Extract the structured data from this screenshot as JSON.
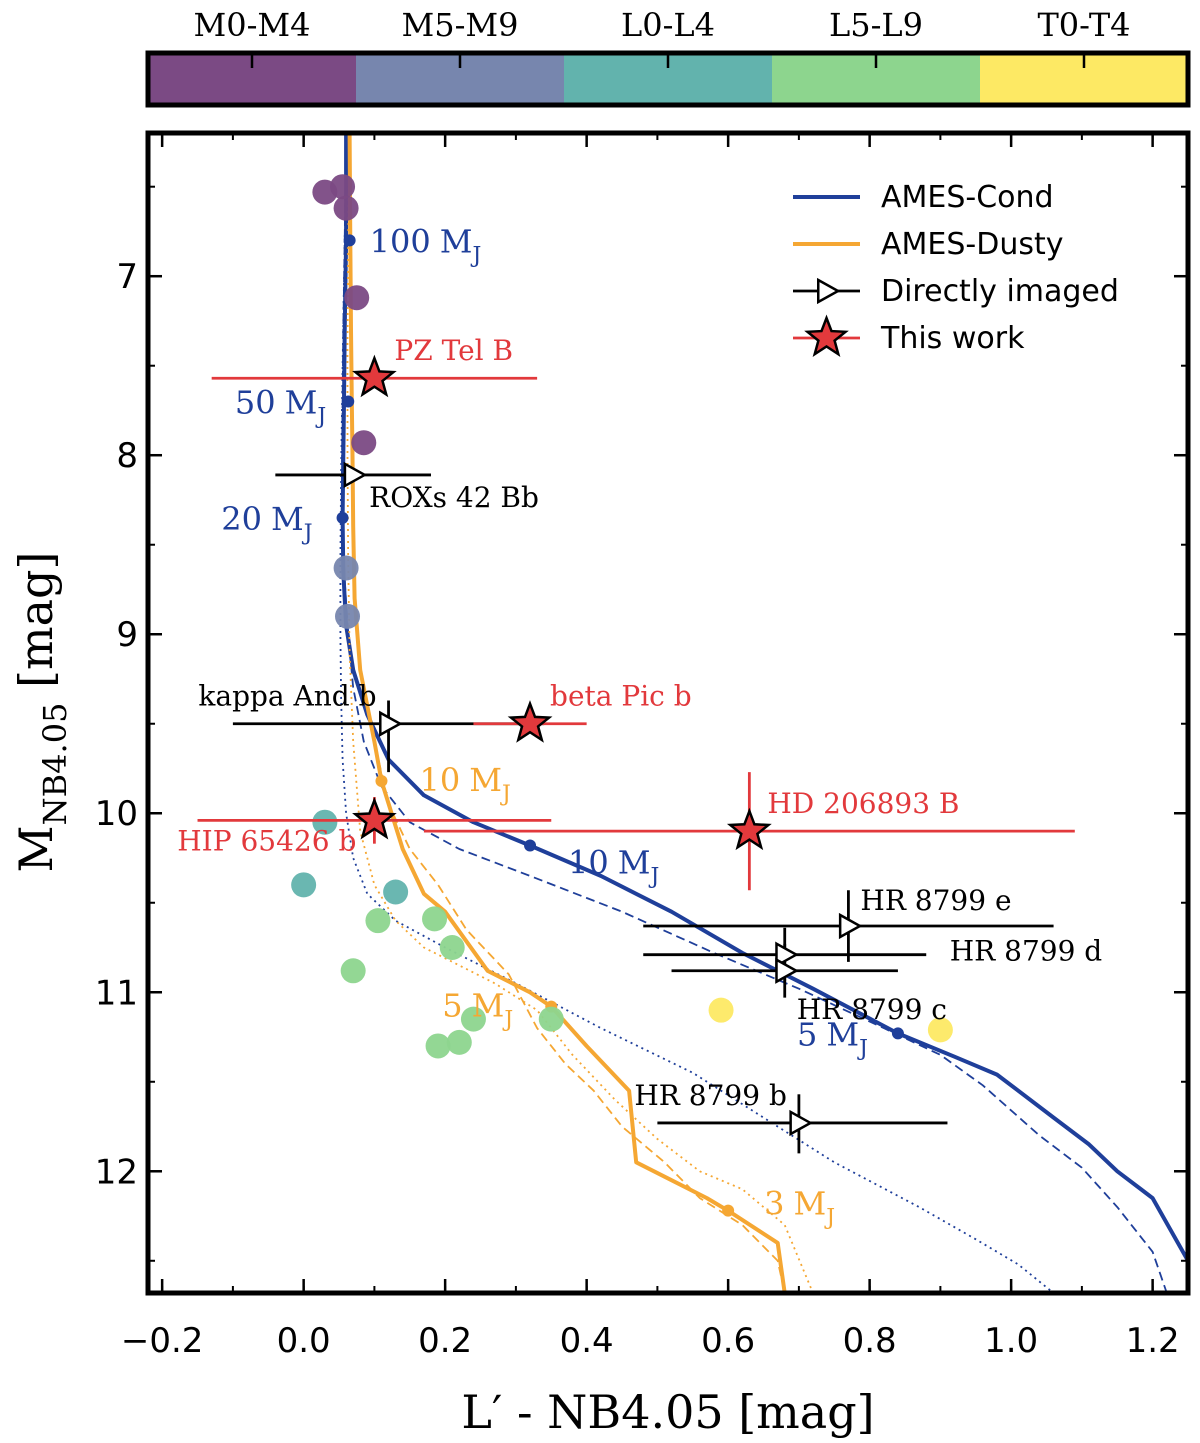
{
  "chart_data": {
    "type": "scatter",
    "xlabel": "L′ - NB4.05 [mag]",
    "ylabel_main": "M",
    "ylabel_sub": "NB4.05",
    "ylabel_unit": "[mag]",
    "xlim": [
      -0.22,
      1.25
    ],
    "ylim": [
      12.68,
      6.2
    ],
    "xticks": [
      -0.2,
      0.0,
      0.2,
      0.4,
      0.6,
      0.8,
      1.0,
      1.2
    ],
    "xtick_labels": [
      "−0.2",
      "0.0",
      "0.2",
      "0.4",
      "0.6",
      "0.8",
      "1.0",
      "1.2"
    ],
    "yticks": [
      7,
      8,
      9,
      10,
      11,
      12
    ],
    "ytick_labels": [
      "7",
      "8",
      "9",
      "10",
      "11",
      "12"
    ],
    "colorbar": {
      "categories": [
        "M0-M4",
        "M5-M9",
        "L0-L4",
        "L5-L9",
        "T0-T4"
      ],
      "colors": [
        "#7b4a84",
        "#7786ae",
        "#62b3ad",
        "#8dd58e",
        "#fde964"
      ]
    },
    "legend": {
      "position": "top-right",
      "entries": [
        {
          "label": "AMES-Cond",
          "kind": "line",
          "color": "#1f3f9a"
        },
        {
          "label": "AMES-Dusty",
          "kind": "line",
          "color": "#f5a733"
        },
        {
          "label": "Directly imaged",
          "kind": "triangle",
          "color": "#000000"
        },
        {
          "label": "This work",
          "kind": "star",
          "color": "#e2393c"
        }
      ]
    },
    "field_objects": [
      {
        "x": 0.03,
        "y": 6.53,
        "class": 0
      },
      {
        "x": 0.055,
        "y": 6.5,
        "class": 0
      },
      {
        "x": 0.06,
        "y": 6.62,
        "class": 0
      },
      {
        "x": 0.075,
        "y": 7.12,
        "class": 0
      },
      {
        "x": 0.085,
        "y": 7.93,
        "class": 0
      },
      {
        "x": 0.06,
        "y": 8.63,
        "class": 1
      },
      {
        "x": 0.062,
        "y": 8.9,
        "class": 1
      },
      {
        "x": 0.03,
        "y": 10.05,
        "class": 2
      },
      {
        "x": 0.0,
        "y": 10.4,
        "class": 2
      },
      {
        "x": 0.13,
        "y": 10.44,
        "class": 2
      },
      {
        "x": 0.105,
        "y": 10.6,
        "class": 3
      },
      {
        "x": 0.185,
        "y": 10.59,
        "class": 3
      },
      {
        "x": 0.21,
        "y": 10.75,
        "class": 3
      },
      {
        "x": 0.07,
        "y": 10.88,
        "class": 3
      },
      {
        "x": 0.24,
        "y": 11.15,
        "class": 3
      },
      {
        "x": 0.35,
        "y": 11.15,
        "class": 3
      },
      {
        "x": 0.19,
        "y": 11.3,
        "class": 3
      },
      {
        "x": 0.22,
        "y": 11.28,
        "class": 3
      },
      {
        "x": 0.59,
        "y": 11.1,
        "class": 4
      },
      {
        "x": 0.9,
        "y": 11.21,
        "class": 4
      }
    ],
    "this_work": [
      {
        "name": "PZ Tel B",
        "x": 0.1,
        "y": 7.57,
        "xerr": [
          0.23,
          0.23
        ],
        "yerr": [
          0,
          0
        ]
      },
      {
        "name": "beta Pic b",
        "x": 0.32,
        "y": 9.5,
        "xerr": [
          0.08,
          0.08
        ],
        "yerr": [
          0,
          0
        ]
      },
      {
        "name": "HIP 65426 b",
        "x": 0.1,
        "y": 10.04,
        "xerr": [
          0.25,
          0.25
        ],
        "yerr": [
          0.13,
          0.13
        ]
      },
      {
        "name": "HD 206893 B",
        "x": 0.63,
        "y": 10.1,
        "xerr": [
          0.46,
          0.46
        ],
        "yerr": [
          0.33,
          0.33
        ]
      }
    ],
    "directly_imaged": [
      {
        "name": "ROXs 42 Bb",
        "x": 0.07,
        "y": 8.11,
        "xerr": [
          0.11,
          0.11
        ],
        "yerr": [
          0,
          0
        ]
      },
      {
        "name": "kappa And b",
        "x": 0.12,
        "y": 9.5,
        "xerr": [
          0.22,
          0.22
        ],
        "yerr": [
          0.13,
          0.27
        ]
      },
      {
        "name": "HR 8799 e",
        "x": 0.77,
        "y": 10.63,
        "xerr": [
          0.29,
          0.29
        ],
        "yerr": [
          0.2,
          0.2
        ]
      },
      {
        "name": "HR 8799 d",
        "x": 0.68,
        "y": 10.79,
        "xerr": [
          0.2,
          0.2
        ],
        "yerr": [
          0.15,
          0.15
        ]
      },
      {
        "name": "HR 8799 c",
        "x": 0.68,
        "y": 10.88,
        "xerr": [
          0.16,
          0.16
        ],
        "yerr": [
          0.15,
          0.15
        ]
      },
      {
        "name": "HR 8799 b",
        "x": 0.7,
        "y": 11.73,
        "xerr": [
          0.2,
          0.21
        ],
        "yerr": [
          0.16,
          0.17
        ]
      }
    ],
    "series": [
      {
        "name": "AMES-Cond",
        "style": "solid",
        "color": "#1f3f9a",
        "x": [
          0.06,
          0.06,
          0.058,
          0.057,
          0.056,
          0.055,
          0.056,
          0.06,
          0.07,
          0.09,
          0.12,
          0.17,
          0.24,
          0.32,
          0.42,
          0.52,
          0.62,
          0.72,
          0.84,
          0.92,
          0.98,
          1.06,
          1.11,
          1.15,
          1.2,
          1.25
        ],
        "y": [
          6.2,
          6.8,
          7.3,
          7.7,
          8.0,
          8.35,
          8.65,
          8.95,
          9.2,
          9.45,
          9.7,
          9.9,
          10.05,
          10.18,
          10.35,
          10.55,
          10.78,
          10.98,
          11.23,
          11.36,
          11.46,
          11.7,
          11.85,
          12.0,
          12.15,
          12.5
        ]
      },
      {
        "name": "AMES-Cond",
        "style": "dashed",
        "color": "#1f3f9a",
        "x": [
          0.06,
          0.058,
          0.056,
          0.055,
          0.054,
          0.055,
          0.058,
          0.063,
          0.07,
          0.085,
          0.11,
          0.15,
          0.22,
          0.32,
          0.45,
          0.58,
          0.7,
          0.82,
          0.9,
          0.96,
          1.04,
          1.1,
          1.15,
          1.2,
          1.22
        ],
        "y": [
          6.2,
          6.8,
          7.3,
          7.7,
          8.1,
          8.4,
          8.7,
          9.0,
          9.3,
          9.6,
          9.85,
          10.05,
          10.2,
          10.35,
          10.55,
          10.78,
          10.98,
          11.2,
          11.35,
          11.52,
          11.8,
          11.98,
          12.2,
          12.45,
          12.68
        ]
      },
      {
        "name": "AMES-Cond",
        "style": "dotted",
        "color": "#1f3f9a",
        "x": [
          0.06,
          0.058,
          0.055,
          0.053,
          0.052,
          0.052,
          0.053,
          0.055,
          0.06,
          0.07,
          0.09,
          0.13,
          0.2,
          0.3,
          0.42,
          0.55,
          0.65,
          0.75,
          0.87,
          0.95,
          1.01,
          1.06
        ],
        "y": [
          6.2,
          6.8,
          7.5,
          8.1,
          8.6,
          9.0,
          9.35,
          9.7,
          10.0,
          10.25,
          10.45,
          10.6,
          10.75,
          10.95,
          11.2,
          11.45,
          11.7,
          11.95,
          12.2,
          12.38,
          12.52,
          12.68
        ]
      },
      {
        "name": "AMES-Dusty",
        "style": "solid",
        "color": "#f5a733",
        "x": [
          0.065,
          0.066,
          0.067,
          0.068,
          0.069,
          0.07,
          0.072,
          0.08,
          0.1,
          0.11,
          0.14,
          0.17,
          0.2,
          0.26,
          0.32,
          0.35,
          0.4,
          0.46,
          0.47,
          0.52,
          0.57,
          0.6,
          0.67,
          0.68
        ],
        "y": [
          6.2,
          6.8,
          7.3,
          7.7,
          8.0,
          8.4,
          8.8,
          9.2,
          9.6,
          9.82,
          10.2,
          10.45,
          10.55,
          10.88,
          11.0,
          11.08,
          11.3,
          11.55,
          11.95,
          12.05,
          12.15,
          12.22,
          12.4,
          12.68
        ]
      },
      {
        "name": "AMES-Dusty",
        "style": "dashed",
        "color": "#f5a733",
        "x": [
          0.065,
          0.066,
          0.067,
          0.068,
          0.069,
          0.07,
          0.072,
          0.08,
          0.1,
          0.12,
          0.15,
          0.19,
          0.23,
          0.29,
          0.33,
          0.37,
          0.41,
          0.45,
          0.51,
          0.56,
          0.62,
          0.67,
          0.68
        ],
        "y": [
          6.2,
          6.8,
          7.3,
          7.7,
          8.0,
          8.4,
          8.8,
          9.2,
          9.6,
          9.95,
          10.2,
          10.4,
          10.65,
          10.9,
          11.2,
          11.4,
          11.55,
          11.75,
          11.95,
          12.15,
          12.3,
          12.5,
          12.68
        ]
      },
      {
        "name": "AMES-Dusty",
        "style": "dotted",
        "color": "#f5a733",
        "x": [
          0.065,
          0.063,
          0.062,
          0.062,
          0.063,
          0.065,
          0.07,
          0.08,
          0.1,
          0.13,
          0.17,
          0.22,
          0.27,
          0.33,
          0.38,
          0.44,
          0.5,
          0.56,
          0.62,
          0.68,
          0.72
        ],
        "y": [
          6.2,
          6.8,
          7.4,
          8.0,
          8.6,
          9.1,
          9.6,
          10.1,
          10.4,
          10.6,
          10.75,
          10.85,
          10.95,
          11.1,
          11.35,
          11.6,
          11.82,
          12.0,
          12.1,
          12.3,
          12.68
        ]
      }
    ],
    "mass_markers": [
      {
        "label": "100",
        "x": 0.065,
        "y": 6.8,
        "color": "#1f3f9a",
        "model": "cond"
      },
      {
        "label": "50",
        "x": 0.063,
        "y": 7.7,
        "color": "#1f3f9a",
        "model": "cond"
      },
      {
        "label": "20",
        "x": 0.055,
        "y": 8.35,
        "color": "#1f3f9a",
        "model": "cond"
      },
      {
        "label": "10",
        "x": 0.32,
        "y": 10.18,
        "color": "#1f3f9a",
        "model": "cond"
      },
      {
        "label": "5",
        "x": 0.84,
        "y": 11.23,
        "color": "#1f3f9a",
        "model": "cond"
      },
      {
        "label": "10",
        "x": 0.11,
        "y": 9.82,
        "color": "#f5a733",
        "model": "dusty"
      },
      {
        "label": "5",
        "x": 0.35,
        "y": 11.08,
        "color": "#f5a733",
        "model": "dusty"
      },
      {
        "label": "3",
        "x": 0.6,
        "y": 12.22,
        "color": "#f5a733",
        "model": "dusty"
      }
    ],
    "mass_unit": "M",
    "mass_unit_sub": "J"
  }
}
